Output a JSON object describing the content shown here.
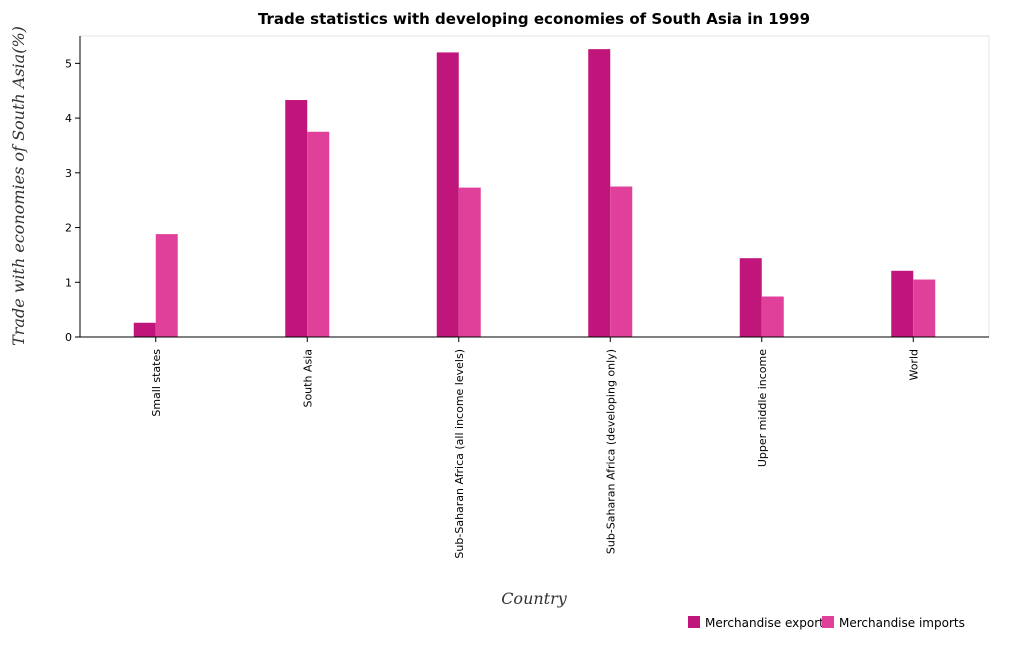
{
  "chart_data": {
    "type": "bar",
    "title": "Trade statistics with developing economies of South Asia in 1999",
    "xlabel": "Country",
    "ylabel": "Trade with economies of South Asia(%)",
    "ylim": [
      0,
      5.5
    ],
    "yticks": [
      0,
      1,
      2,
      3,
      4,
      5
    ],
    "categories": [
      "Small states",
      "South Asia",
      "Sub-Saharan Africa (all income levels)",
      "Sub-Saharan Africa (developing only)",
      "Upper middle income",
      "World"
    ],
    "series": [
      {
        "name": "Merchandise exports",
        "color": "#c0157a",
        "values": [
          0.26,
          4.33,
          5.2,
          5.26,
          1.44,
          1.21
        ]
      },
      {
        "name": "Merchandise imports",
        "color": "#e0409a",
        "values": [
          1.88,
          3.75,
          2.73,
          2.75,
          0.74,
          1.05
        ]
      }
    ],
    "legend_position": "bottom-right",
    "grid": false
  }
}
